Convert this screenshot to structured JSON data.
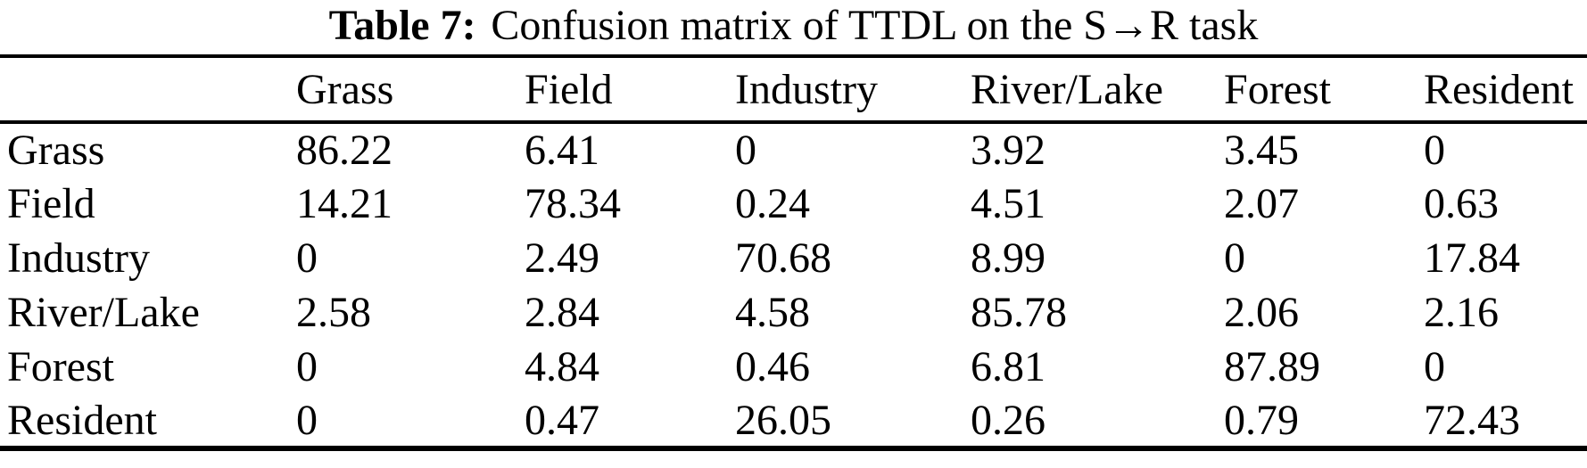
{
  "caption": {
    "label": "Table 7:",
    "text": "Confusion matrix of TTDL on the S→R task"
  },
  "colors": {
    "text": "#000000",
    "background": "#ffffff",
    "rule": "#000000"
  },
  "table": {
    "corner": "",
    "columns": [
      "Grass",
      "Field",
      "Industry",
      "River/Lake",
      "Forest",
      "Resident"
    ],
    "rows": [
      {
        "label": "Grass",
        "values": [
          "86.22",
          "6.41",
          "0",
          "3.92",
          "3.45",
          "0"
        ]
      },
      {
        "label": "Field",
        "values": [
          "14.21",
          "78.34",
          "0.24",
          "4.51",
          "2.07",
          "0.63"
        ]
      },
      {
        "label": "Industry",
        "values": [
          "0",
          "2.49",
          "70.68",
          "8.99",
          "0",
          "17.84"
        ]
      },
      {
        "label": "River/Lake",
        "values": [
          "2.58",
          "2.84",
          "4.58",
          "85.78",
          "2.06",
          "2.16"
        ]
      },
      {
        "label": "Forest",
        "values": [
          "0",
          "4.84",
          "0.46",
          "6.81",
          "87.89",
          "0"
        ]
      },
      {
        "label": "Resident",
        "values": [
          "0",
          "0.47",
          "26.05",
          "0.26",
          "0.79",
          "72.43"
        ]
      }
    ]
  }
}
